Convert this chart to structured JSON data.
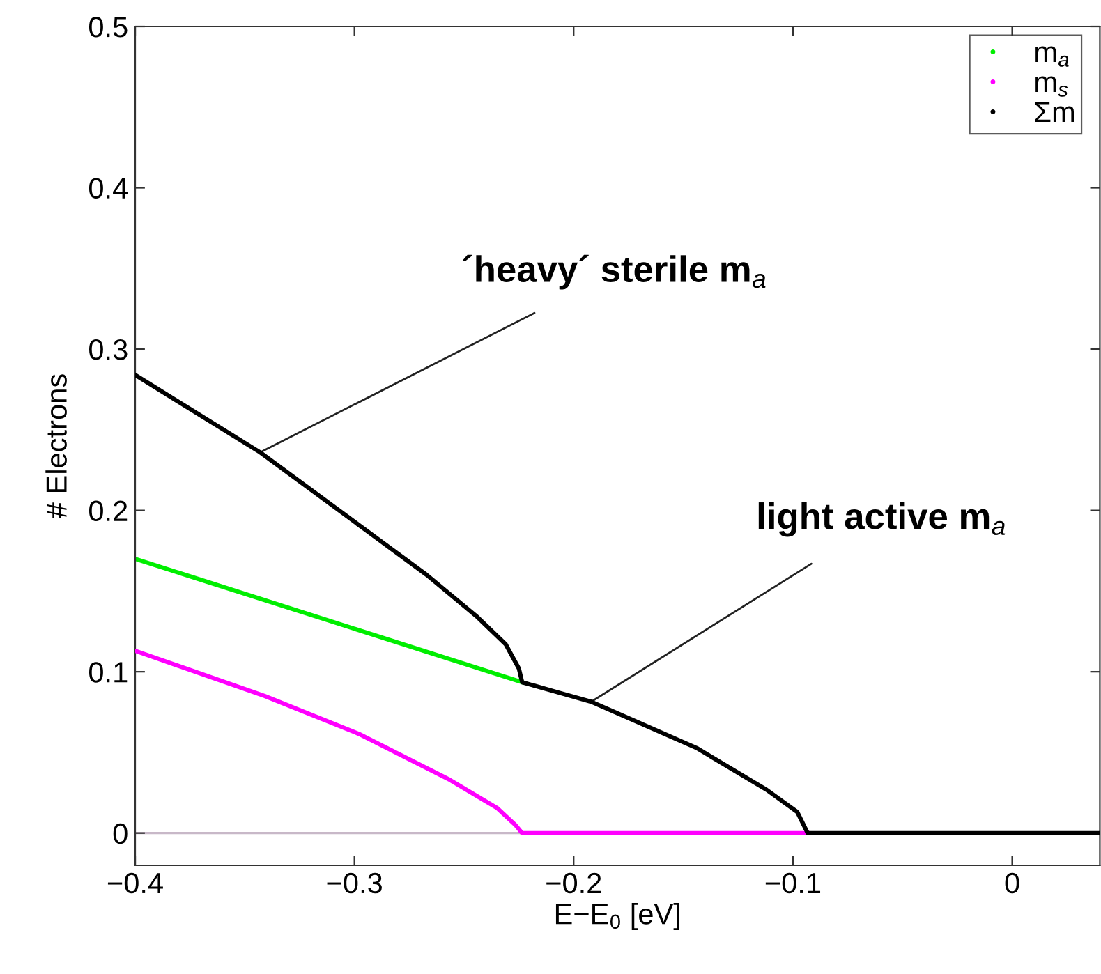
{
  "chart_data": {
    "type": "line",
    "xlabel": "E−E$_{0}$ [eV]",
    "ylabel": "# Electrons",
    "xlim": [
      -0.4,
      0.04
    ],
    "ylim": [
      -0.02,
      0.5
    ],
    "xticks": [
      -0.4,
      -0.3,
      -0.2,
      -0.1,
      0
    ],
    "yticks": [
      0,
      0.1,
      0.2,
      0.3,
      0.4,
      0.5
    ],
    "grid": false,
    "legend": "top right",
    "marker": "none",
    "line_style": "solid",
    "series": [
      {
        "name": "m$_{a}$",
        "color": "#00ee00",
        "x": [
          -0.4,
          -0.2235
        ],
        "values": [
          0.17,
          0.0935
        ]
      },
      {
        "name": "m$_{s}$",
        "color": "#ff00ff",
        "x": [
          -0.4,
          -0.341,
          -0.298,
          -0.2565,
          -0.235,
          -0.2267,
          -0.2235,
          -0.0933
        ],
        "values": [
          0.113,
          0.085,
          0.0615,
          0.033,
          0.0156,
          0.0052,
          0,
          0
        ]
      },
      {
        "name": "Σm",
        "color": "#000000",
        "x": [
          -0.4,
          -0.343,
          -0.298,
          -0.267,
          -0.244,
          -0.231,
          -0.225,
          -0.2235,
          -0.2076,
          -0.192,
          -0.144,
          -0.112,
          -0.098,
          -0.0933,
          0.04
        ],
        "values": [
          0.284,
          0.236,
          0.191,
          0.16,
          0.134,
          0.117,
          0.102,
          0.0935,
          0.0874,
          0.0814,
          0.0528,
          0.0268,
          0.013,
          0,
          0
        ]
      }
    ],
    "ref_lines": [
      {
        "axis": "y",
        "value": 0,
        "color": "#c8b8c8"
      }
    ],
    "annotations": [
      {
        "text": "´heavy´ sterile m$_{a}$",
        "x": -0.343,
        "y": 0.236
      },
      {
        "text": "light active m$_{a}$",
        "x": -0.192,
        "y": 0.0814
      }
    ]
  }
}
